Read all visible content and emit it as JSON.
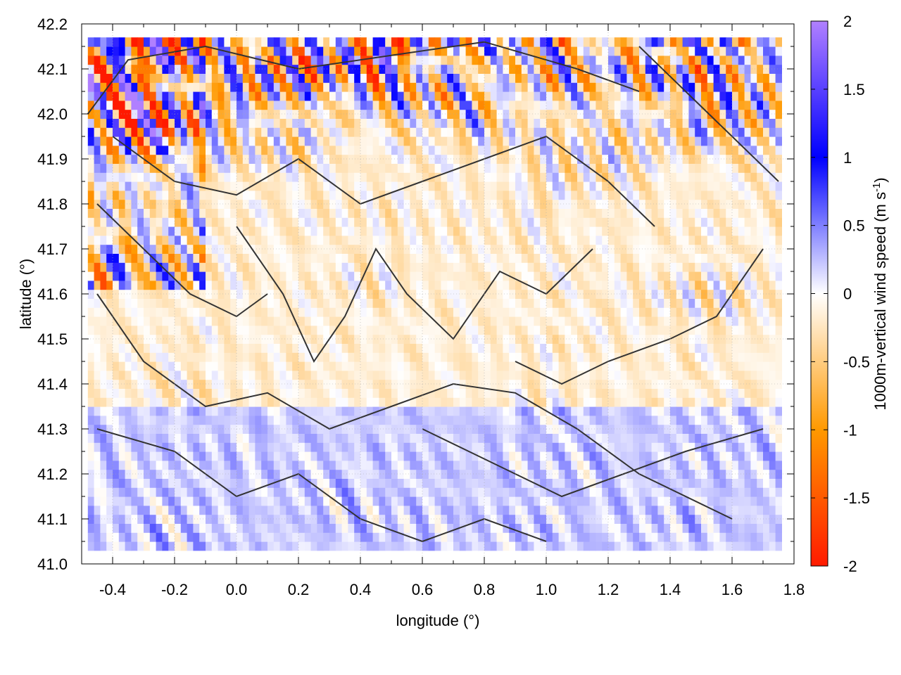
{
  "chart_data": {
    "type": "heatmap",
    "title": "",
    "xlabel": "longitude (°)",
    "ylabel": "latitude (°)",
    "xlim": [
      -0.5,
      1.8
    ],
    "ylim": [
      41.0,
      42.2
    ],
    "x_ticks": [
      "-0.4",
      "-0.2",
      "0.0",
      "0.2",
      "0.4",
      "0.6",
      "0.8",
      "1.0",
      "1.2",
      "1.4",
      "1.6",
      "1.8"
    ],
    "y_ticks": [
      "41.0",
      "41.1",
      "41.2",
      "41.3",
      "41.4",
      "41.5",
      "41.6",
      "41.7",
      "41.8",
      "41.9",
      "42.0",
      "42.1",
      "42.2"
    ],
    "colorbar": {
      "label_main": "1000m-vertical wind speed (m s",
      "label_sup": "-1",
      "label_close": ")",
      "range": [
        -2,
        2
      ],
      "ticks": [
        "-2",
        "-1.5",
        "-1",
        "-0.5",
        "0",
        "0.5",
        "1",
        "1.5",
        "2"
      ],
      "colors": [
        {
          "value": -2,
          "color": "#ff1a00"
        },
        {
          "value": -1,
          "color": "#ff9900"
        },
        {
          "value": 0,
          "color": "#ffffff"
        },
        {
          "value": 1,
          "color": "#0000ff"
        },
        {
          "value": 2,
          "color": "#b080ff"
        }
      ]
    },
    "domain_box": {
      "lon": [
        -0.48,
        1.76
      ],
      "lat": [
        41.03,
        42.17
      ]
    },
    "grid": true,
    "contour_color": "#333333"
  }
}
